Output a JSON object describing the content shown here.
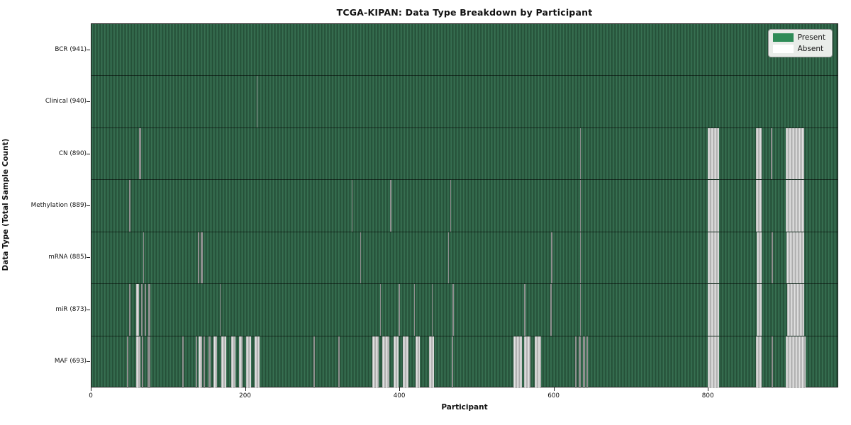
{
  "title": "TCGA-KIPAN: Data Type Breakdown by Participant",
  "legend": {
    "present_label": "Present",
    "absent_label": "Absent",
    "present_color": "#2e8b57",
    "absent_color": "#ffffff"
  },
  "colors": {
    "bar_green_light": "#3b7656",
    "bar_green_dark": "#234c35",
    "absent_thin_gray": "#8f8f8f",
    "absent_band_light": "#ececec",
    "absent_band_gray": "#a8a8a8",
    "axis": "#1a1a1a"
  },
  "chart_data": {
    "type": "heatmap",
    "title": "TCGA-KIPAN: Data Type Breakdown by Participant",
    "xlabel": "Participant",
    "ylabel": "Data Type (Total Sample Count)",
    "legend_entries": [
      "Present",
      "Absent"
    ],
    "legend_position": "upper right",
    "grid": false,
    "x_ticks": [
      0,
      200,
      400,
      600,
      800
    ],
    "x_range": [
      0,
      969
    ],
    "n_participants": 941,
    "rows": [
      {
        "label": "BCR (941)",
        "data_type": "BCR",
        "total_sample_count": 941,
        "absent_ranges": []
      },
      {
        "label": "Clinical (940)",
        "data_type": "Clinical",
        "total_sample_count": 940,
        "absent_ranges": [
          [
            214,
            215
          ]
        ]
      },
      {
        "label": "CN (890)",
        "data_type": "CN",
        "total_sample_count": 890,
        "absent_ranges": [
          [
            62,
            64
          ],
          [
            633,
            634
          ],
          [
            799,
            814
          ],
          [
            861,
            869
          ],
          [
            881,
            883
          ],
          [
            900,
            924
          ]
        ]
      },
      {
        "label": "Methylation (889)",
        "data_type": "Methylation",
        "total_sample_count": 889,
        "absent_ranges": [
          [
            49,
            51
          ],
          [
            337,
            338
          ],
          [
            387,
            388
          ],
          [
            465,
            466
          ],
          [
            633,
            634
          ],
          [
            799,
            814
          ],
          [
            861,
            869
          ],
          [
            900,
            924
          ]
        ]
      },
      {
        "label": "mRNA (885)",
        "data_type": "mRNA",
        "total_sample_count": 885,
        "absent_ranges": [
          [
            67,
            68
          ],
          [
            138,
            140
          ],
          [
            142,
            144
          ],
          [
            348,
            349
          ],
          [
            462,
            463
          ],
          [
            596,
            597
          ],
          [
            633,
            634
          ],
          [
            799,
            814
          ],
          [
            862,
            869
          ],
          [
            882,
            883
          ],
          [
            901,
            924
          ]
        ]
      },
      {
        "label": "miR (873)",
        "data_type": "miR",
        "total_sample_count": 873,
        "absent_ranges": [
          [
            49,
            50
          ],
          [
            58,
            62
          ],
          [
            64,
            66
          ],
          [
            69,
            71
          ],
          [
            74,
            76
          ],
          [
            166,
            167
          ],
          [
            374,
            375
          ],
          [
            398,
            399
          ],
          [
            418,
            419
          ],
          [
            441,
            442
          ],
          [
            468,
            469
          ],
          [
            561,
            562
          ],
          [
            595,
            596
          ],
          [
            633,
            634
          ],
          [
            799,
            814
          ],
          [
            862,
            869
          ],
          [
            902,
            924
          ]
        ]
      },
      {
        "label": "MAF (693)",
        "data_type": "MAF",
        "total_sample_count": 693,
        "absent_ranges": [
          [
            46,
            47
          ],
          [
            58,
            63
          ],
          [
            65,
            67
          ],
          [
            73,
            76
          ],
          [
            118,
            119
          ],
          [
            135,
            137
          ],
          [
            139,
            143
          ],
          [
            145,
            147
          ],
          [
            152,
            154
          ],
          [
            158,
            163
          ],
          [
            168,
            175
          ],
          [
            181,
            187
          ],
          [
            191,
            196
          ],
          [
            200,
            207
          ],
          [
            211,
            218
          ],
          [
            288,
            289
          ],
          [
            320,
            321
          ],
          [
            364,
            372
          ],
          [
            377,
            386
          ],
          [
            392,
            398
          ],
          [
            404,
            411
          ],
          [
            420,
            426
          ],
          [
            438,
            444
          ],
          [
            467,
            469
          ],
          [
            547,
            558
          ],
          [
            561,
            569
          ],
          [
            575,
            583
          ],
          [
            627,
            629
          ],
          [
            632,
            634
          ],
          [
            637,
            640
          ],
          [
            642,
            643
          ],
          [
            799,
            814
          ],
          [
            861,
            869
          ],
          [
            882,
            883
          ],
          [
            900,
            926
          ]
        ]
      }
    ]
  }
}
